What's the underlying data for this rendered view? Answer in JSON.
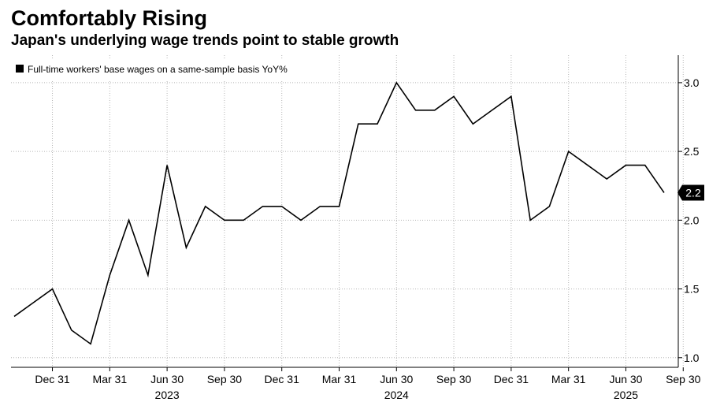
{
  "title": "Comfortably Rising",
  "subtitle": "Japan's underlying wage trends point to stable growth",
  "chart_data": {
    "type": "line",
    "legend": "Full-time workers' base wages on a same-sample basis YoY%",
    "x_tick_labels": [
      "Dec 31",
      "Mar 31",
      "Jun 30",
      "Sep 30",
      "Dec 31",
      "Mar 31",
      "Jun 30",
      "Sep 30",
      "Dec 31",
      "Mar 31",
      "Jun 30",
      "Sep 30"
    ],
    "x_year_labels": [
      "2023",
      "2024",
      "2025"
    ],
    "y_ticks": [
      1.0,
      1.5,
      2.0,
      2.5,
      3.0
    ],
    "y_tick_labels": [
      "1.0",
      "1.5",
      "2.0",
      "2.5",
      "3.0"
    ],
    "ylim": [
      0.93,
      3.2
    ],
    "series": [
      {
        "name": "Full-time workers' base wages on a same-sample basis YoY%",
        "values": [
          1.3,
          1.4,
          1.5,
          1.2,
          1.1,
          1.6,
          2.0,
          1.6,
          2.4,
          1.8,
          2.1,
          2.0,
          2.0,
          2.1,
          2.1,
          2.0,
          2.1,
          2.1,
          2.7,
          2.7,
          3.0,
          2.8,
          2.8,
          2.9,
          2.7,
          2.8,
          2.9,
          2.0,
          2.1,
          2.5,
          2.4,
          2.3,
          2.4,
          2.4,
          2.2
        ]
      }
    ],
    "last_value_label": "2.2",
    "line_color": "#000000",
    "grid": true,
    "grid_style": "dotted",
    "legend_position": "top-left"
  }
}
